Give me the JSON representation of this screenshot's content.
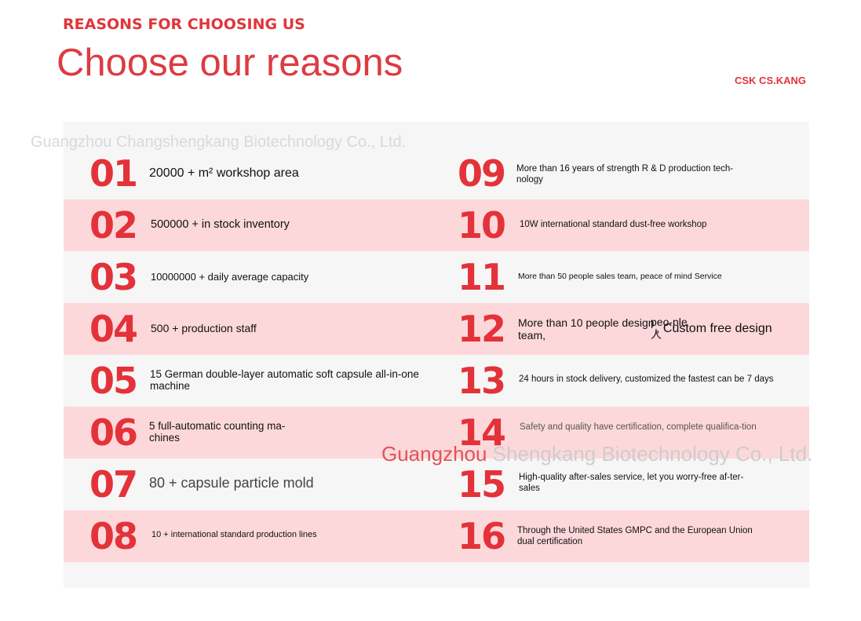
{
  "header": {
    "eyebrow": "REASONS FOR CHOOSING US",
    "title": "Choose our reasons",
    "brand": "CSK CS.KANG"
  },
  "watermarks": {
    "top": "Guangzhou Changshengkang Biotechnology Co., Ltd.",
    "bottom_accent": "Guangzhou",
    "bottom_rest": " Shengkang Biotechnology Co., Ltd."
  },
  "reasons_left": [
    {
      "number": "01",
      "text": "20000 + m² workshop area"
    },
    {
      "number": "02",
      "text": "500000 + in stock inventory"
    },
    {
      "number": "03",
      "text": "10000000 + daily average capacity"
    },
    {
      "number": "04",
      "text": "500 + production staff"
    },
    {
      "number": "05",
      "text": "15 German double-layer automatic soft capsule all-in-one machine"
    },
    {
      "number": "06",
      "text": "5 full-automatic counting ma-chines"
    },
    {
      "number": "07",
      "text": "80 + capsule particle mold"
    },
    {
      "number": "08",
      "text": "10 + international standard production lines"
    }
  ],
  "reasons_right": [
    {
      "number": "09",
      "text": "More than 16 years of strength R & D production tech-nology"
    },
    {
      "number": "10",
      "text": "10W international standard dust-free workshop"
    },
    {
      "number": "11",
      "text": "More than 50 people sales team, peace of mind Service"
    },
    {
      "number": "12",
      "text": "More than 10 people design team,",
      "text_extra_1": "peo-ple 人",
      "text_extra_2": ", Custom free design"
    },
    {
      "number": "13",
      "text": "24 hours in stock delivery, customized the fastest can be 7 days"
    },
    {
      "number": "14",
      "text": "Safety and quality have certification, complete qualifica-tion"
    },
    {
      "number": "15",
      "text": "High-quality after-sales service, let you worry-free af-ter-sales"
    },
    {
      "number": "16",
      "text": "Through the United States GMPC and the European Union dual certification"
    }
  ]
}
